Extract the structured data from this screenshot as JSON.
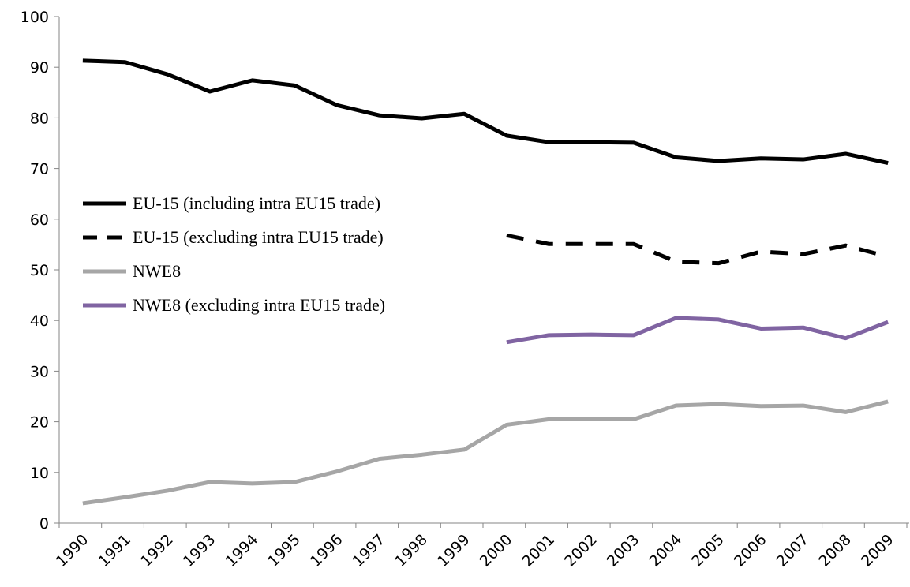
{
  "chart_data": {
    "type": "line",
    "categories": [
      "1990",
      "1991",
      "1992",
      "1993",
      "1994",
      "1995",
      "1996",
      "1997",
      "1998",
      "1999",
      "2000",
      "2001",
      "2002",
      "2003",
      "2004",
      "2005",
      "2006",
      "2007",
      "2008",
      "2009"
    ],
    "series": [
      {
        "name": "EU-15 (including intra EU15 trade)",
        "color": "#000000",
        "dashed": false,
        "values": [
          91.3,
          91.0,
          88.6,
          85.2,
          87.4,
          86.4,
          82.5,
          80.5,
          79.9,
          80.8,
          76.5,
          75.2,
          75.2,
          75.1,
          72.2,
          71.5,
          72.0,
          71.8,
          72.9,
          71.1
        ]
      },
      {
        "name": "EU-15 (excluding intra EU15 trade)",
        "color": "#000000",
        "dashed": true,
        "values": [
          null,
          null,
          null,
          null,
          null,
          null,
          null,
          null,
          null,
          null,
          56.8,
          55.1,
          55.1,
          55.1,
          51.6,
          51.3,
          53.6,
          53.1,
          54.8,
          52.6
        ]
      },
      {
        "name": "NWE8",
        "color": "#a6a6a6",
        "dashed": false,
        "values": [
          3.9,
          5.1,
          6.4,
          8.1,
          7.8,
          8.1,
          10.2,
          12.7,
          13.5,
          14.5,
          19.4,
          20.5,
          20.6,
          20.5,
          23.2,
          23.5,
          23.1,
          23.2,
          21.9,
          24.0
        ]
      },
      {
        "name": "NWE8 (excluding intra EU15 trade)",
        "color": "#8064a2",
        "dashed": false,
        "values": [
          null,
          null,
          null,
          null,
          null,
          null,
          null,
          null,
          null,
          null,
          35.7,
          37.1,
          37.2,
          37.1,
          40.5,
          40.2,
          38.4,
          38.6,
          36.5,
          39.7
        ]
      }
    ],
    "ylim": [
      0,
      100
    ],
    "yticks": [
      0,
      10,
      20,
      30,
      40,
      50,
      60,
      70,
      80,
      90,
      100
    ],
    "grid": false,
    "legend": "left"
  }
}
